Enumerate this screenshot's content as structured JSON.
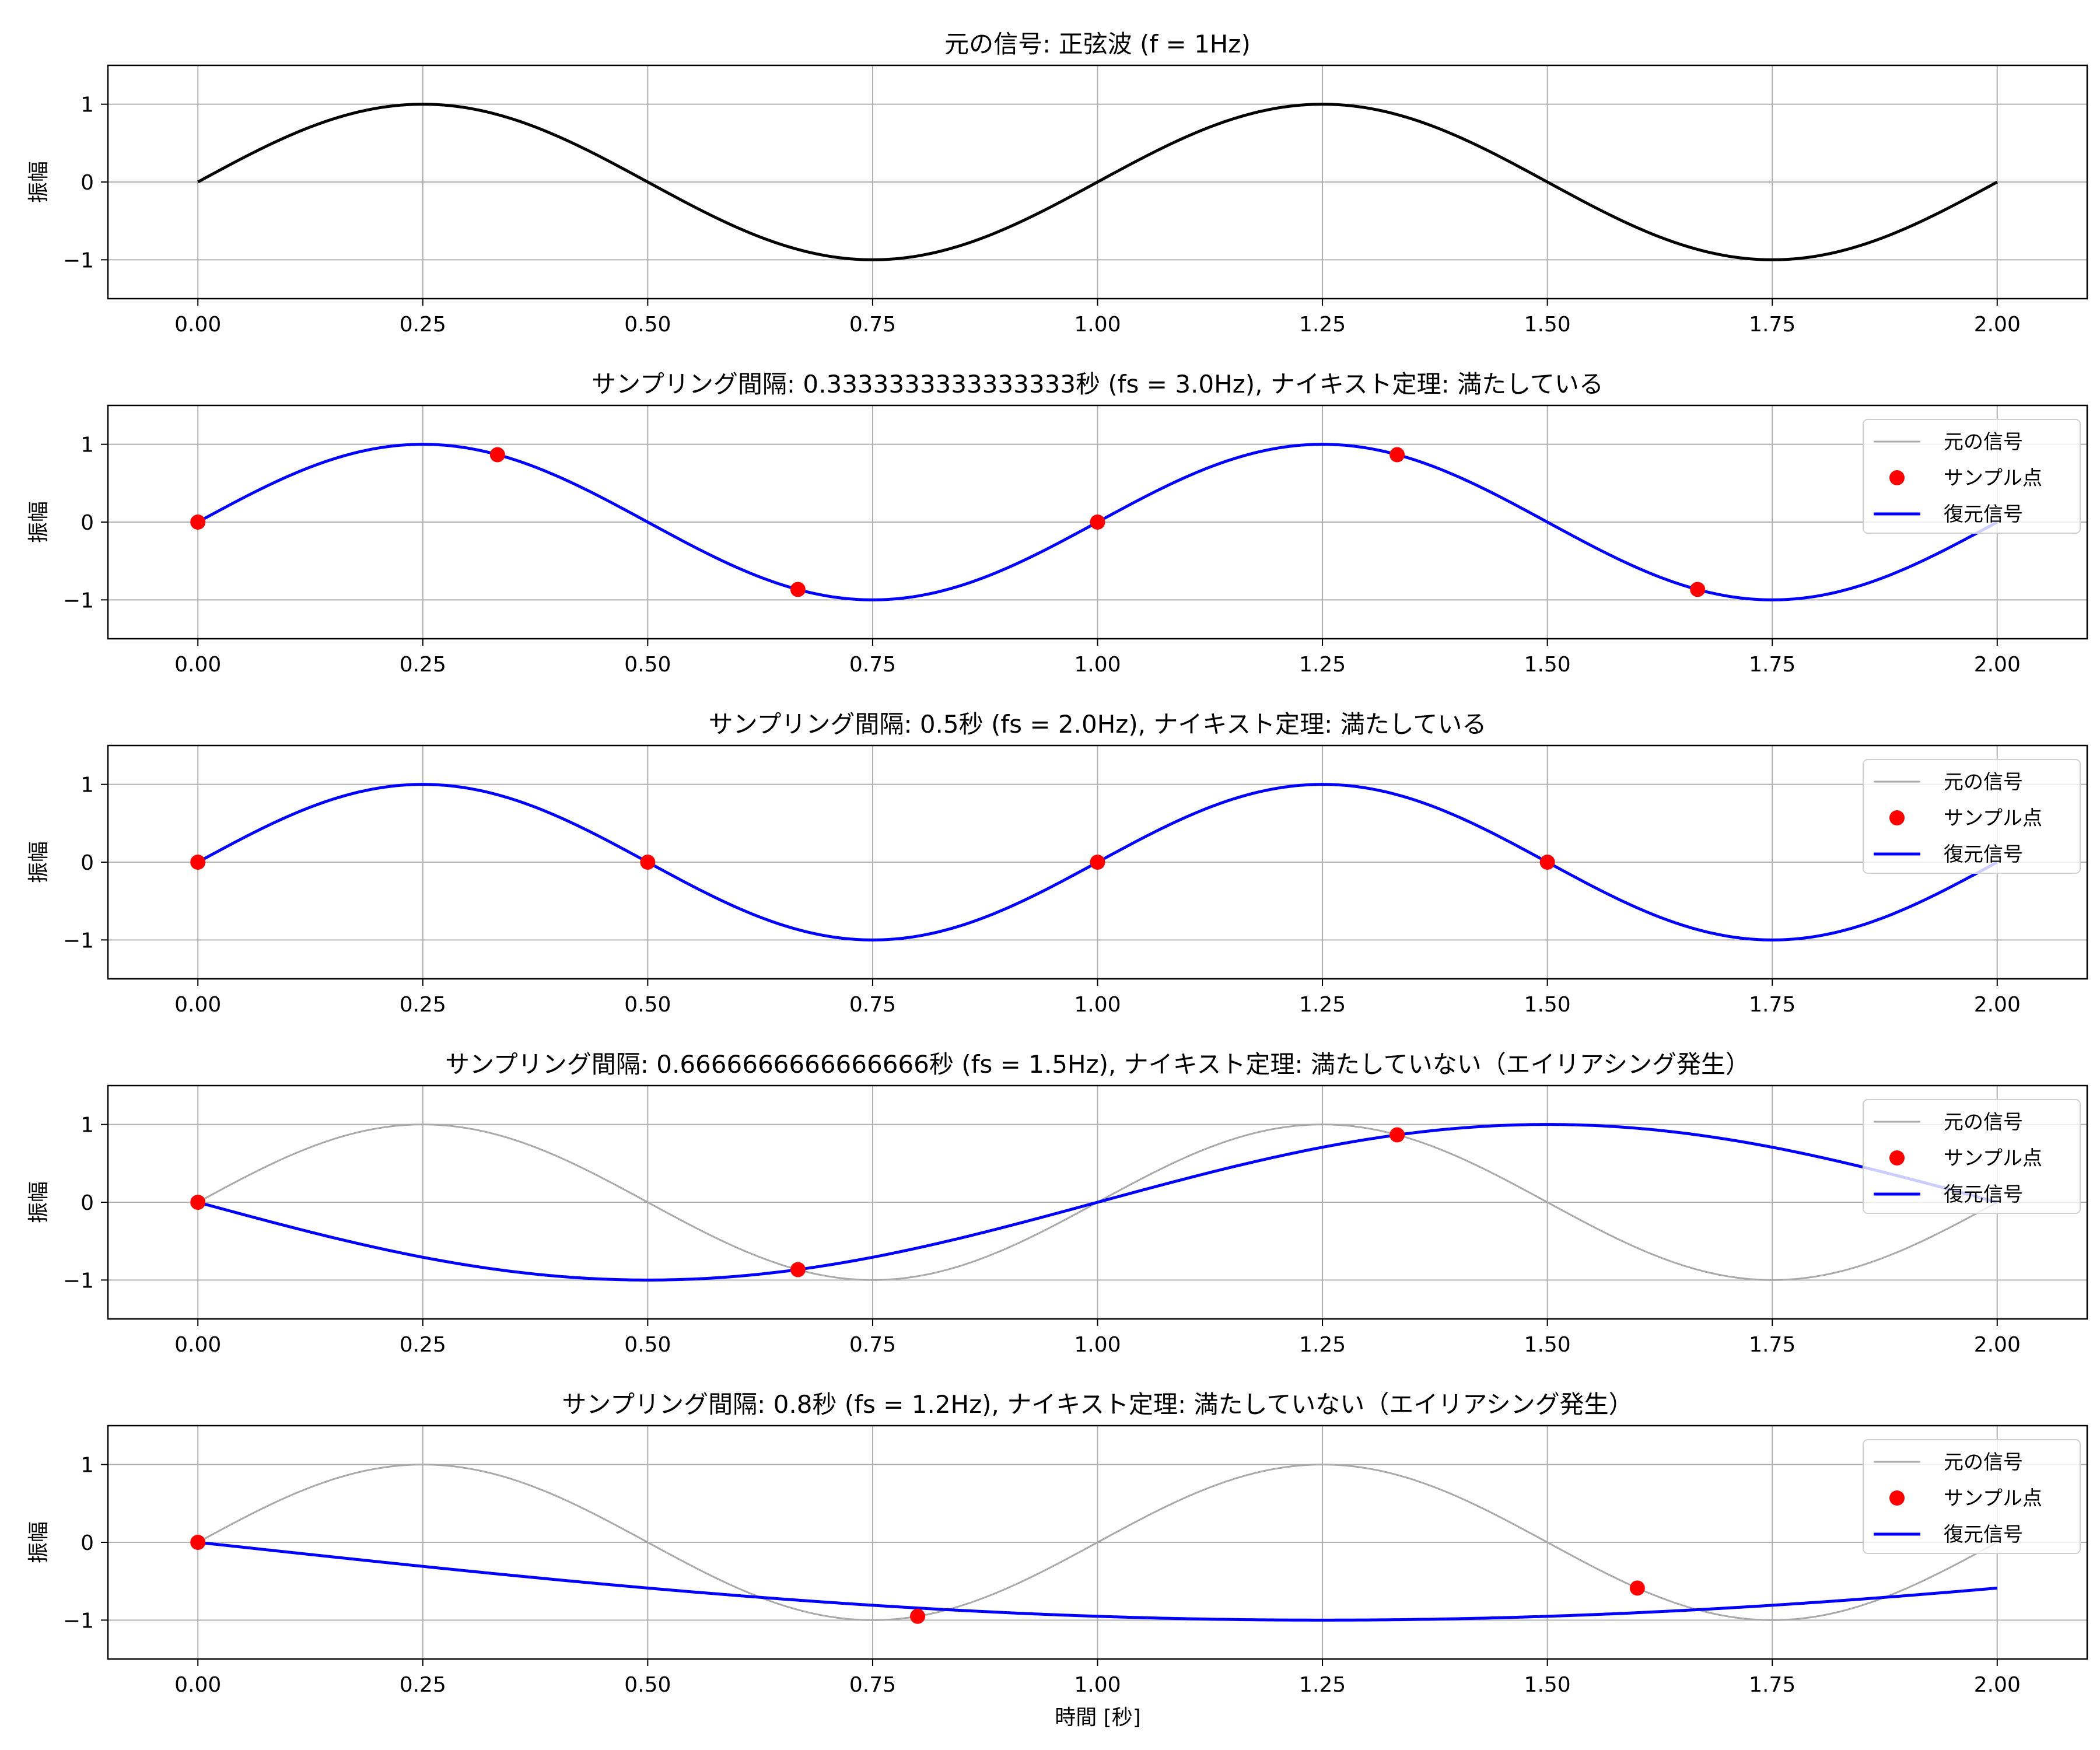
{
  "figure": {
    "xlabel": "時間 [秒]",
    "ylabel": "振幅",
    "xlim": [
      -0.1,
      2.1
    ],
    "ylim": [
      -1.5,
      1.5
    ],
    "xticks": [
      "0.00",
      "0.25",
      "0.50",
      "0.75",
      "1.00",
      "1.25",
      "1.50",
      "1.75",
      "2.00"
    ],
    "yticks": [
      "1",
      "0",
      "−1"
    ],
    "grid": true,
    "colors": {
      "original": "#000000",
      "original_faint": "#a9a9a9",
      "samples": "#ff0000",
      "reconstructed": "#0000ff"
    }
  },
  "chart_data": [
    {
      "type": "line",
      "title": "元の信号: 正弦波 (f = 1Hz)",
      "signal_frequency_hz": 1,
      "x_range": [
        0,
        2
      ],
      "series": [
        {
          "kind": "original",
          "function": "sin(2*pi*1*t)"
        }
      ],
      "legend": null
    },
    {
      "type": "line",
      "title": "サンプリング間隔: 0.3333333333333333秒 (fs = 3.0Hz), ナイキスト定理: 満たしている",
      "sampling_interval": 0.3333333333333333,
      "fs": 3.0,
      "series": [
        {
          "name": "元の信号",
          "kind": "original_faint",
          "function": "sin(2*pi*1*t)"
        },
        {
          "name": "サンプル点",
          "kind": "samples",
          "x": [
            0,
            0.333,
            0.667,
            1.0,
            1.333,
            1.667
          ],
          "y": [
            0,
            0.866,
            -0.866,
            0,
            0.866,
            -0.866
          ]
        },
        {
          "name": "復元信号",
          "kind": "reconstructed",
          "function": "sin(2*pi*1*t)"
        }
      ],
      "legend": "upper-right"
    },
    {
      "type": "line",
      "title": "サンプリング間隔: 0.5秒 (fs = 2.0Hz), ナイキスト定理: 満たしている",
      "sampling_interval": 0.5,
      "fs": 2.0,
      "series": [
        {
          "name": "元の信号",
          "kind": "original_faint",
          "function": "sin(2*pi*1*t)"
        },
        {
          "name": "サンプル点",
          "kind": "samples",
          "x": [
            0,
            0.5,
            1.0,
            1.5
          ],
          "y": [
            0,
            0,
            0,
            0
          ]
        },
        {
          "name": "復元信号",
          "kind": "reconstructed",
          "function": "sin(2*pi*1*t)"
        }
      ],
      "legend": "upper-right"
    },
    {
      "type": "line",
      "title": "サンプリング間隔: 0.6666666666666666秒 (fs = 1.5Hz), ナイキスト定理: 満たしていない（エイリアシング発生）",
      "sampling_interval": 0.6666666666666666,
      "fs": 1.5,
      "series": [
        {
          "name": "元の信号",
          "kind": "original_faint",
          "function": "sin(2*pi*1*t)"
        },
        {
          "name": "サンプル点",
          "kind": "samples",
          "x": [
            0,
            0.667,
            1.333
          ],
          "y": [
            0,
            -0.866,
            0.866
          ]
        },
        {
          "name": "復元信号",
          "kind": "reconstructed",
          "function": "-sin(2*pi*0.5*t)"
        }
      ],
      "legend": "upper-right"
    },
    {
      "type": "line",
      "title": "サンプリング間隔: 0.8秒 (fs = 1.2Hz), ナイキスト定理: 満たしていない（エイリアシング発生）",
      "sampling_interval": 0.8,
      "fs": 1.2,
      "series": [
        {
          "name": "元の信号",
          "kind": "original_faint",
          "function": "sin(2*pi*1*t)"
        },
        {
          "name": "サンプル点",
          "kind": "samples",
          "x": [
            0,
            0.8,
            1.6
          ],
          "y": [
            0,
            -0.951,
            -0.588
          ]
        },
        {
          "name": "復元信号",
          "kind": "reconstructed",
          "function": "-sin(2*pi*0.2*t)"
        }
      ],
      "legend": "upper-right"
    }
  ]
}
